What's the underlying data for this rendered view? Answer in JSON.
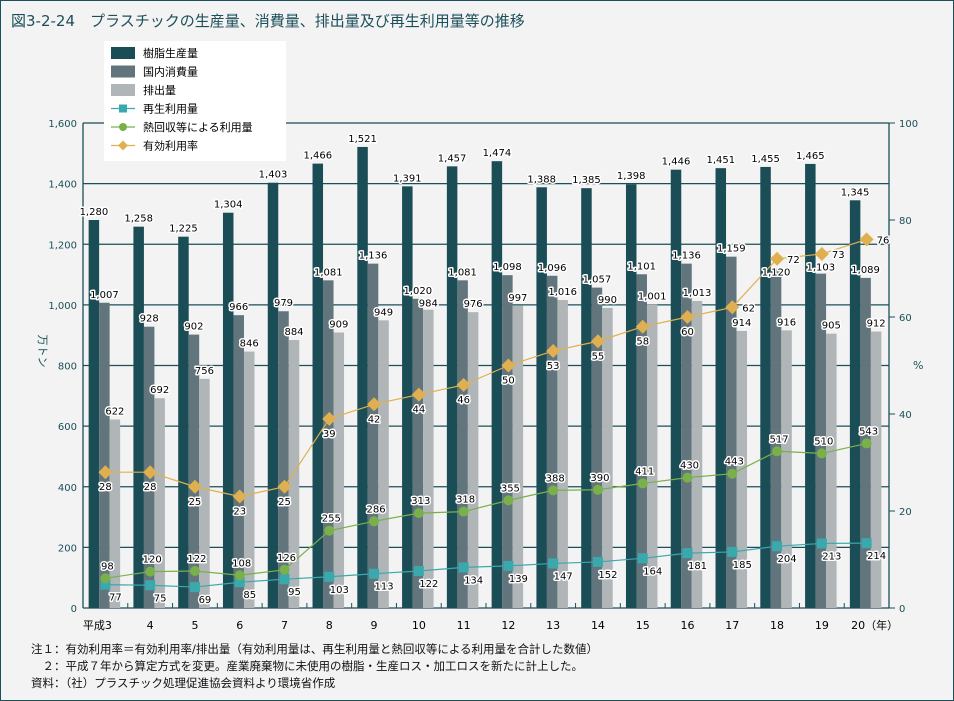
{
  "title": "図3-2-24　プラスチックの生産量、消費量、排出量及び再生利用量等の推移",
  "chart_data": {
    "type": "bar",
    "title": "図3-2-24　プラスチックの生産量、消費量、排出量及び再生利用量等の推移",
    "categories": [
      "平成3",
      "4",
      "5",
      "6",
      "7",
      "8",
      "9",
      "10",
      "11",
      "12",
      "13",
      "14",
      "15",
      "16",
      "17",
      "18",
      "19",
      "20（年）"
    ],
    "ylabel": "万トン",
    "y2label": "%",
    "ylim": [
      0,
      1600
    ],
    "y2lim": [
      0,
      100
    ],
    "yticks": [
      "0",
      "200",
      "400",
      "600",
      "800",
      "1,000",
      "1,200",
      "1,400",
      "1,600"
    ],
    "y2ticks": [
      "0",
      "20",
      "40",
      "60",
      "80",
      "100"
    ],
    "grid": true,
    "legend_position": "top-left",
    "series": [
      {
        "name": "樹脂生産量",
        "kind": "bar",
        "color": "#1b4d57",
        "values": [
          1280,
          1258,
          1225,
          1304,
          1403,
          1466,
          1521,
          1391,
          1457,
          1474,
          1388,
          1385,
          1398,
          1446,
          1451,
          1455,
          1465,
          1345
        ]
      },
      {
        "name": "国内消費量",
        "kind": "bar",
        "color": "#62757c",
        "values": [
          1007,
          928,
          902,
          966,
          979,
          1081,
          1136,
          1020,
          1081,
          1098,
          1096,
          1057,
          1101,
          1136,
          1159,
          1120,
          1103,
          1089
        ]
      },
      {
        "name": "排出量",
        "kind": "bar",
        "color": "#b0b5b8",
        "values": [
          622,
          692,
          756,
          846,
          884,
          909,
          949,
          984,
          976,
          997,
          1016,
          990,
          1001,
          1013,
          914,
          916,
          905,
          912
        ]
      },
      {
        "name": "再生利用量",
        "kind": "line",
        "marker": "square",
        "color": "#3aa9ad",
        "values": [
          77,
          75,
          69,
          85,
          95,
          103,
          113,
          122,
          134,
          139,
          147,
          152,
          164,
          181,
          185,
          204,
          213,
          214
        ]
      },
      {
        "name": "熱回収等による利用量",
        "kind": "line",
        "marker": "circle",
        "color": "#7ab04a",
        "values": [
          98,
          120,
          122,
          108,
          126,
          255,
          286,
          313,
          318,
          355,
          388,
          390,
          411,
          430,
          443,
          517,
          510,
          543
        ]
      },
      {
        "name": "有効利用率",
        "kind": "line",
        "marker": "diamond",
        "axis": "right",
        "color": "#e0b050",
        "values": [
          28,
          28,
          25,
          23,
          25,
          39,
          42,
          44,
          46,
          50,
          53,
          55,
          58,
          60,
          62,
          72,
          73,
          76
        ]
      }
    ]
  },
  "notes": [
    "注１：有効利用率＝有効利用率/排出量（有効利用量は、再生利用量と熱回収等による利用量を合計した数値）",
    "　２：平成７年から算定方式を変更。産業廃棄物に未使用の樹脂・生産ロス・加工ロスを新たに計上した。",
    "資料：（社）プラスチック処理促進協会資料より環境省作成"
  ]
}
